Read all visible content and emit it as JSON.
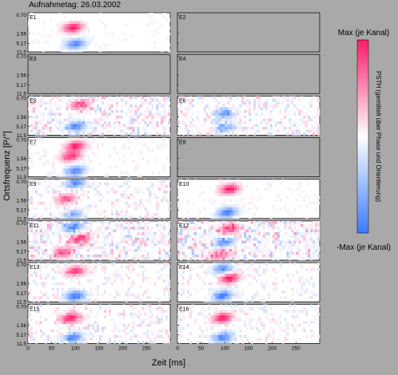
{
  "chart_data": {
    "type": "heatmap",
    "title": "Aufnahmetag: 26.03.2002",
    "xlabel": "Zeit [ms]",
    "ylabel": "Ortsfrequenz [P/°]",
    "xlim": [
      0,
      300
    ],
    "x_ticks": [
      "0",
      "50",
      "100",
      "150",
      "200",
      "250"
    ],
    "y_tick_labels": [
      "11.5",
      "5.17",
      "1.56",
      "0.70"
    ],
    "colorbar": {
      "label": "PSTH (gemittelt über Phase und Orientierung)",
      "max_label": "Max (je Kanal)",
      "min_label": "-Max (je Kanal)",
      "colors": [
        "#ff1a6a",
        "#ffffff",
        "#3b7bff"
      ]
    },
    "panels": [
      {
        "id": "E1",
        "label": "E1",
        "active": true,
        "bands": [
          {
            "y": 0.62,
            "x": 95,
            "pol": 1,
            "amp": 1.0
          },
          {
            "y": 0.2,
            "x": 100,
            "pol": -1,
            "amp": 0.9
          }
        ],
        "noise": 0.08
      },
      {
        "id": "E2",
        "label": "E2",
        "active": false
      },
      {
        "id": "E3",
        "label": "E3",
        "active": false
      },
      {
        "id": "E4",
        "label": "E4",
        "active": false
      },
      {
        "id": "E5",
        "label": "E5",
        "active": true,
        "bands": [
          {
            "y": 0.78,
            "x": 110,
            "pol": 1,
            "amp": 0.8
          },
          {
            "y": 0.22,
            "x": 100,
            "pol": -1,
            "amp": 0.8
          }
        ],
        "noise": 0.35
      },
      {
        "id": "E6",
        "label": "E6",
        "active": true,
        "bands": [
          {
            "y": 0.55,
            "x": 100,
            "pol": -1,
            "amp": 0.7
          },
          {
            "y": 0.2,
            "x": 100,
            "pol": -1,
            "amp": 0.6
          }
        ],
        "noise": 0.3
      },
      {
        "id": "E7",
        "label": "E7",
        "active": true,
        "bands": [
          {
            "y": 0.78,
            "x": 100,
            "pol": 1,
            "amp": 1.0
          },
          {
            "y": 0.52,
            "x": 90,
            "pol": 1,
            "amp": 0.9
          },
          {
            "y": 0.15,
            "x": 100,
            "pol": -1,
            "amp": 0.9
          }
        ],
        "noise": 0.12
      },
      {
        "id": "E8",
        "label": "E8",
        "active": false
      },
      {
        "id": "E9",
        "label": "E9",
        "active": true,
        "bands": [
          {
            "y": 0.9,
            "x": 100,
            "pol": -1,
            "amp": 0.9
          },
          {
            "y": 0.5,
            "x": 80,
            "pol": 1,
            "amp": 0.7
          },
          {
            "y": 0.1,
            "x": 95,
            "pol": -1,
            "amp": 0.6
          }
        ],
        "noise": 0.25
      },
      {
        "id": "E10",
        "label": "E10",
        "active": true,
        "bands": [
          {
            "y": 0.75,
            "x": 110,
            "pol": 1,
            "amp": 1.0
          },
          {
            "y": 0.15,
            "x": 105,
            "pol": -1,
            "amp": 1.0
          }
        ],
        "noise": 0.1
      },
      {
        "id": "E11",
        "label": "E11",
        "active": true,
        "bands": [
          {
            "y": 0.85,
            "x": 95,
            "pol": -1,
            "amp": 0.9
          },
          {
            "y": 0.55,
            "x": 110,
            "pol": 1,
            "amp": 0.9
          },
          {
            "y": 0.2,
            "x": 75,
            "pol": 1,
            "amp": 0.8
          }
        ],
        "noise": 0.4
      },
      {
        "id": "E12",
        "label": "E12",
        "active": true,
        "bands": [
          {
            "y": 0.8,
            "x": 110,
            "pol": 1,
            "amp": 0.8
          },
          {
            "y": 0.45,
            "x": 100,
            "pol": -1,
            "amp": 0.8
          },
          {
            "y": 0.15,
            "x": 90,
            "pol": 1,
            "amp": 0.7
          }
        ],
        "noise": 0.45
      },
      {
        "id": "E13",
        "label": "E13",
        "active": true,
        "bands": [
          {
            "y": 0.78,
            "x": 100,
            "pol": 1,
            "amp": 0.9
          },
          {
            "y": 0.15,
            "x": 100,
            "pol": -1,
            "amp": 1.0
          }
        ],
        "noise": 0.2
      },
      {
        "id": "E14",
        "label": "E14",
        "active": true,
        "bands": [
          {
            "y": 0.85,
            "x": 95,
            "pol": -1,
            "amp": 0.8
          },
          {
            "y": 0.6,
            "x": 110,
            "pol": 1,
            "amp": 1.0
          },
          {
            "y": 0.15,
            "x": 95,
            "pol": -1,
            "amp": 1.0
          }
        ],
        "noise": 0.2
      },
      {
        "id": "E15",
        "label": "E15",
        "active": true,
        "bands": [
          {
            "y": 0.65,
            "x": 90,
            "pol": 1,
            "amp": 1.0
          },
          {
            "y": 0.15,
            "x": 95,
            "pol": -1,
            "amp": 0.9
          }
        ],
        "noise": 0.25
      },
      {
        "id": "E16",
        "label": "E16",
        "active": true,
        "bands": [
          {
            "y": 0.65,
            "x": 95,
            "pol": 1,
            "amp": 1.0
          },
          {
            "y": 0.15,
            "x": 95,
            "pol": -1,
            "amp": 0.9
          }
        ],
        "noise": 0.2
      }
    ]
  }
}
